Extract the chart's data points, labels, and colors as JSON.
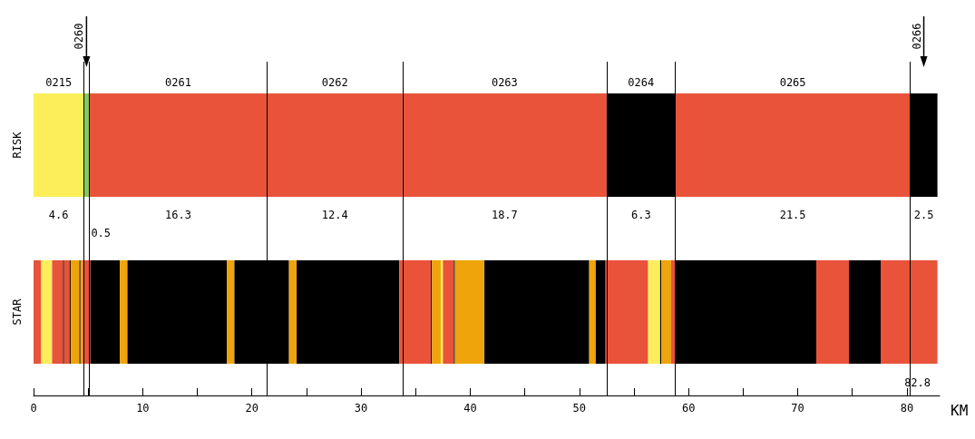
{
  "chart_data": {
    "type": "bar",
    "orientation": "horizontal",
    "stacked": true,
    "categories": [
      "RISK",
      "STAR"
    ],
    "xlabel": "KM",
    "xlim": [
      0,
      83
    ],
    "xticks": [
      0,
      {
        "value": 5,
        "label": null
      },
      10,
      {
        "value": 15,
        "label": null
      },
      20,
      {
        "value": 25,
        "label": null
      },
      30,
      {
        "value": 35,
        "label": null
      },
      40,
      {
        "value": 45,
        "label": null
      },
      50,
      {
        "value": 55,
        "label": null
      },
      60,
      {
        "value": 65,
        "label": null
      },
      70,
      {
        "value": 75,
        "label": null
      },
      80
    ],
    "series": [
      {
        "color": "#fcee5a",
        "values": [
          4.6,
          null
        ]
      },
      {
        "color": "#8cc65a",
        "values": [
          0.5,
          null
        ]
      },
      {
        "color": "#e8533a",
        "values": [
          16.3,
          null
        ]
      },
      {
        "color": "#e8533a",
        "values": [
          12.4,
          null
        ]
      },
      {
        "color": "#e8533a",
        "values": [
          18.7,
          null
        ]
      },
      {
        "color": "#000000",
        "values": [
          6.3,
          null
        ]
      },
      {
        "color": "#e8533a",
        "values": [
          21.5,
          null
        ]
      },
      {
        "color": "#000000",
        "values": [
          2.5,
          null
        ]
      },
      {
        "color": "#e8533a",
        "values": [
          null,
          0.7
        ]
      },
      {
        "color": "#fcee5a",
        "values": [
          null,
          1
        ]
      },
      {
        "color": "#e8533a",
        "values": [
          null,
          1
        ]
      },
      {
        "color": "#000000",
        "values": [
          null,
          0.1
        ]
      },
      {
        "color": "#e8533a",
        "values": [
          null,
          0.5
        ]
      },
      {
        "color": "#000000",
        "values": [
          null,
          0.1
        ]
      },
      {
        "color": "#eea40a",
        "values": [
          null,
          0.8
        ]
      },
      {
        "color": "#000000",
        "values": [
          null,
          0.1
        ]
      },
      {
        "color": "#eea40a",
        "values": [
          null,
          0.2
        ]
      },
      {
        "color": "#e8533a",
        "values": [
          null,
          0.7
        ]
      },
      {
        "color": "#000000",
        "values": [
          null,
          2.7
        ]
      },
      {
        "color": "#eea40a",
        "values": [
          null,
          0.7
        ]
      },
      {
        "color": "#000000",
        "values": [
          null,
          9.1
        ]
      },
      {
        "color": "#eea40a",
        "values": [
          null,
          0.7
        ]
      },
      {
        "color": "#000000",
        "values": [
          null,
          5
        ]
      },
      {
        "color": "#eea40a",
        "values": [
          null,
          0.7
        ]
      },
      {
        "color": "#000000",
        "values": [
          null,
          9.4
        ]
      },
      {
        "color": "#e8533a",
        "values": [
          null,
          2.9
        ]
      },
      {
        "color": "#000000",
        "values": [
          null,
          0.1
        ]
      },
      {
        "color": "#eea40a",
        "values": [
          null,
          0.8
        ]
      },
      {
        "color": "#fcee5a",
        "values": [
          null,
          0.2
        ]
      },
      {
        "color": "#e8533a",
        "values": [
          null,
          1
        ]
      },
      {
        "color": "#000000",
        "values": [
          null,
          0.1
        ]
      },
      {
        "color": "#eea40a",
        "values": [
          null,
          2.7
        ]
      },
      {
        "color": "#000000",
        "values": [
          null,
          9.6
        ]
      },
      {
        "color": "#eea40a",
        "values": [
          null,
          0.6
        ]
      },
      {
        "color": "#000000",
        "values": [
          null,
          0.9
        ]
      },
      {
        "color": "#e8533a",
        "values": [
          null,
          3.9
        ]
      },
      {
        "color": "#fcee5a",
        "values": [
          null,
          1.1
        ]
      },
      {
        "color": "#000000",
        "values": [
          null,
          0.1
        ]
      },
      {
        "color": "#eea40a",
        "values": [
          null,
          0.9
        ]
      },
      {
        "color": "#e8533a",
        "values": [
          null,
          0.4
        ]
      },
      {
        "color": "#000000",
        "values": [
          null,
          12.9
        ]
      },
      {
        "color": "#e8533a",
        "values": [
          null,
          3
        ]
      },
      {
        "color": "#000000",
        "values": [
          null,
          2.9
        ]
      },
      {
        "color": "#e8533a",
        "values": [
          null,
          5.2
        ]
      }
    ],
    "ref_lines": [
      {
        "axis": "x",
        "value": 4.6
      },
      {
        "axis": "x",
        "value": 5.1
      },
      {
        "axis": "x",
        "value": 21.4
      },
      {
        "axis": "x",
        "value": 33.8
      },
      {
        "axis": "x",
        "value": 52.5
      },
      {
        "axis": "x",
        "value": 58.8
      },
      {
        "axis": "x",
        "value": 80.3
      }
    ],
    "annotations": [
      "0215",
      "0261",
      "0262",
      "0263",
      "0264",
      "0265",
      "4.6",
      "16.3",
      "12.4",
      "18.7",
      "6.3",
      "21.5",
      "2.5",
      "0.5",
      "82.8",
      "0260",
      "0266"
    ]
  }
}
